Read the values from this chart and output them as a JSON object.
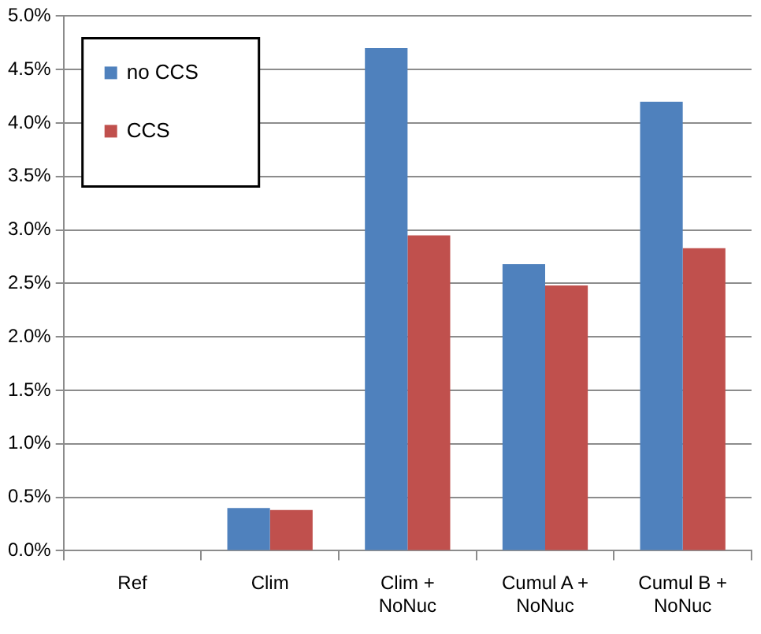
{
  "chart_data": {
    "type": "bar",
    "categories": [
      "Ref",
      "Clim",
      "Clim + NoNuc",
      "Cumul A + NoNuc",
      "Cumul B + NoNuc"
    ],
    "series": [
      {
        "name": "no CCS",
        "color": "#4f81bd",
        "values": [
          0,
          0.4,
          4.7,
          2.68,
          4.2
        ]
      },
      {
        "name": "CCS",
        "color": "#c0504d",
        "values": [
          0,
          0.38,
          2.95,
          2.48,
          2.83
        ]
      }
    ],
    "ylim": [
      0,
      5
    ],
    "yticks": [
      {
        "value": 0,
        "label": "0.0%"
      },
      {
        "value": 0.5,
        "label": "0.5%"
      },
      {
        "value": 1,
        "label": "1.0%"
      },
      {
        "value": 1.5,
        "label": "1.5%"
      },
      {
        "value": 2,
        "label": "2.0%"
      },
      {
        "value": 2.5,
        "label": "2.5%"
      },
      {
        "value": 3,
        "label": "3.0%"
      },
      {
        "value": 3.5,
        "label": "3.5%"
      },
      {
        "value": 4,
        "label": "4.0%"
      },
      {
        "value": 4.5,
        "label": "4.5%"
      },
      {
        "value": 5,
        "label": "5.0%"
      }
    ],
    "grid": "y",
    "legend": "top left"
  }
}
